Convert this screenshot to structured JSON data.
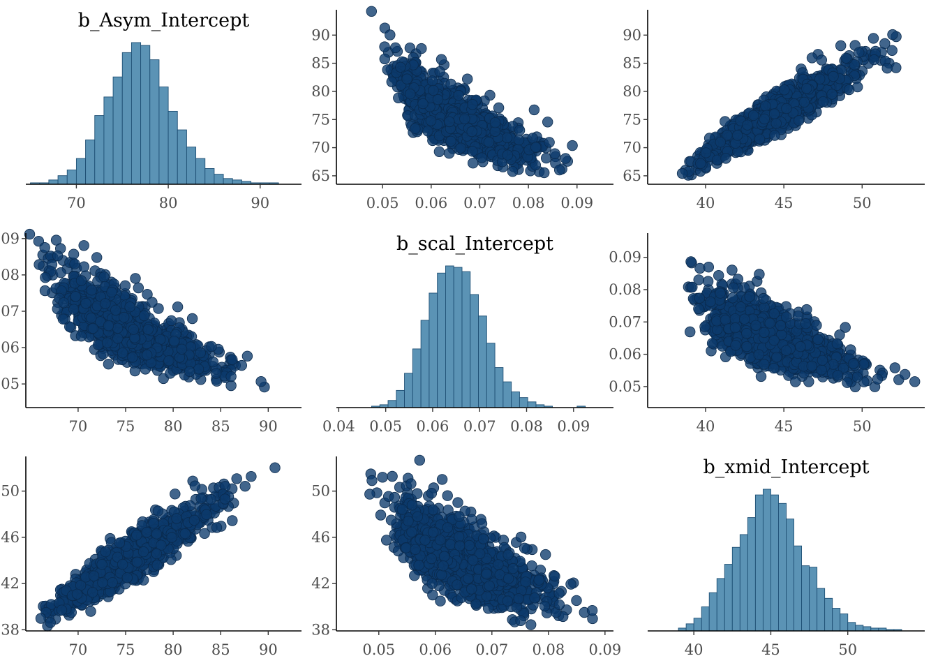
{
  "colors": {
    "point_fill": "#0b3a6b",
    "point_edge": "#0a2a4d",
    "bar_fill": "#5b93b5",
    "bar_edge": "#1e4f74",
    "axis": "#000000",
    "tick_text": "#4d4d4d",
    "background": "#ffffff"
  },
  "chart_data": [
    {
      "type": "histogram",
      "row": 1,
      "col": 1,
      "title": "b_Asym_Intercept",
      "parameter": "b_Asym",
      "xlim": [
        64.5,
        94.5
      ],
      "xticks": [
        70,
        80,
        90
      ],
      "bins": {
        "start": 65,
        "width": 1,
        "counts": [
          1,
          1,
          3,
          6,
          10,
          18,
          31,
          48,
          61,
          75,
          92,
          99,
          97,
          87,
          68,
          51,
          38,
          26,
          18,
          11,
          7,
          4,
          3,
          2,
          1,
          1,
          1,
          0,
          0
        ]
      }
    },
    {
      "type": "scatter",
      "row": 1,
      "col": 2,
      "title": "",
      "x_parameter": "b_scal",
      "y_parameter": "b_Asym",
      "xlim": [
        0.0405,
        0.0975
      ],
      "ylim": [
        63.5,
        94.5
      ],
      "xticks": [
        0.05,
        0.06,
        0.07,
        0.08,
        0.09
      ],
      "yticks": [
        65,
        70,
        75,
        80,
        85,
        90
      ],
      "n": 1100,
      "seed": 11
    },
    {
      "type": "scatter",
      "row": 1,
      "col": 3,
      "title": "",
      "x_parameter": "b_xmid",
      "y_parameter": "b_Asym",
      "xlim": [
        36.3,
        54.0
      ],
      "ylim": [
        63.5,
        94.5
      ],
      "xticks": [
        40,
        45,
        50
      ],
      "yticks": [
        65,
        70,
        75,
        80,
        85,
        90
      ],
      "n": 1100,
      "seed": 23
    },
    {
      "type": "scatter",
      "row": 2,
      "col": 1,
      "title": "",
      "x_parameter": "b_Asym",
      "y_parameter": "b_scal",
      "xlim": [
        64.5,
        93.5
      ],
      "ylim": [
        0.0435,
        0.0915
      ],
      "xticks": [
        70,
        75,
        80,
        85,
        90
      ],
      "yticks": [
        0.05,
        0.06,
        0.07,
        0.08,
        0.09
      ],
      "n": 1100,
      "seed": 37
    },
    {
      "type": "histogram",
      "row": 2,
      "col": 2,
      "title": "b_scal_Intercept",
      "parameter": "b_scal",
      "xlim": [
        0.0395,
        0.0985
      ],
      "xticks": [
        0.04,
        0.05,
        0.06,
        0.07,
        0.08,
        0.09
      ],
      "bins": {
        "start": 0.0435,
        "width": 0.00175,
        "counts": [
          0,
          0,
          1,
          2,
          5,
          12,
          24,
          41,
          61,
          80,
          94,
          99,
          98,
          95,
          79,
          64,
          45,
          28,
          18,
          11,
          7,
          4,
          2,
          1,
          0,
          0,
          0,
          1,
          0,
          0
        ]
      }
    },
    {
      "type": "scatter",
      "row": 2,
      "col": 3,
      "title": "",
      "x_parameter": "b_xmid",
      "y_parameter": "b_scal",
      "xlim": [
        36.3,
        54.0
      ],
      "ylim": [
        0.0435,
        0.0975
      ],
      "xticks": [
        40,
        45,
        50
      ],
      "yticks": [
        0.05,
        0.06,
        0.07,
        0.08,
        0.09
      ],
      "n": 1100,
      "seed": 51
    },
    {
      "type": "scatter",
      "row": 3,
      "col": 1,
      "title": "",
      "x_parameter": "b_Asym",
      "y_parameter": "b_xmid",
      "xlim": [
        64.5,
        93.5
      ],
      "ylim": [
        37.9,
        53.0
      ],
      "xticks": [
        70,
        75,
        80,
        85,
        90
      ],
      "yticks": [
        38,
        42,
        46,
        50
      ],
      "n": 1100,
      "seed": 67
    },
    {
      "type": "scatter",
      "row": 3,
      "col": 2,
      "title": "",
      "x_parameter": "b_scal",
      "y_parameter": "b_xmid",
      "xlim": [
        0.0425,
        0.0915
      ],
      "ylim": [
        37.9,
        53.0
      ],
      "xticks": [
        0.05,
        0.06,
        0.07,
        0.08,
        0.09
      ],
      "yticks": [
        38,
        42,
        46,
        50
      ],
      "n": 1100,
      "seed": 79
    },
    {
      "type": "histogram",
      "row": 3,
      "col": 3,
      "title": "b_xmid_Intercept",
      "parameter": "b_xmid",
      "xlim": [
        37.0,
        55.0
      ],
      "xticks": [
        40,
        45,
        50
      ],
      "bins": {
        "start": 38.5,
        "width": 0.5,
        "counts": [
          0,
          2,
          5,
          9,
          17,
          27,
          37,
          47,
          59,
          68,
          80,
          96,
          100,
          96,
          90,
          79,
          60,
          46,
          45,
          30,
          23,
          16,
          12,
          6,
          4,
          3,
          2,
          2,
          1,
          1,
          0
        ]
      }
    }
  ],
  "parameters": {
    "b_Asym": {
      "mean": 75.3,
      "sd": 4.1
    },
    "b_scal": {
      "mean": 0.0653,
      "sd": 0.0068
    },
    "b_xmid": {
      "mean": 44.1,
      "sd": 2.35
    },
    "correlations": {
      "Asym_scal": -0.8,
      "Asym_xmid": 0.93,
      "scal_xmid": -0.72
    }
  }
}
